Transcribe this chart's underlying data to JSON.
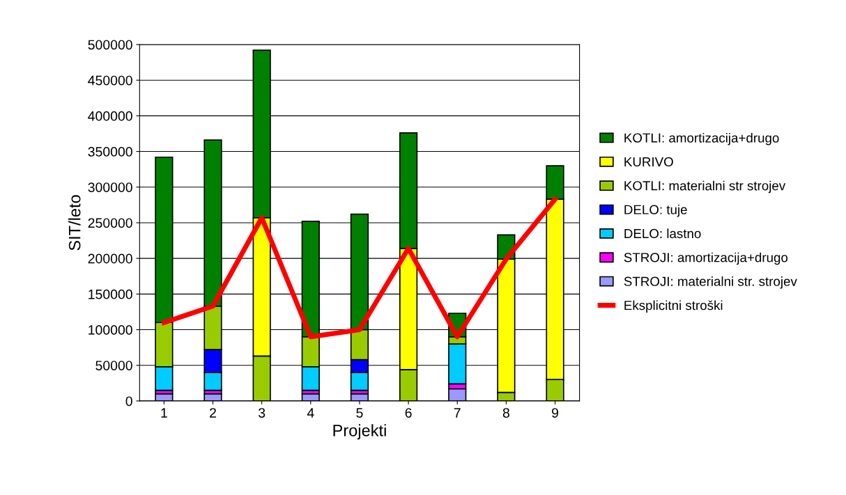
{
  "chart_data": {
    "type": "bar",
    "stacked": true,
    "xlabel": "Projekti",
    "ylabel": "SIT/leto",
    "categories": [
      "1",
      "2",
      "3",
      "4",
      "5",
      "6",
      "7",
      "8",
      "9"
    ],
    "ylim": [
      0,
      500000
    ],
    "yticks": [
      0,
      50000,
      100000,
      150000,
      200000,
      250000,
      300000,
      350000,
      400000,
      450000,
      500000
    ],
    "grid": "y",
    "legend": "right",
    "series": [
      {
        "name": "STROJI: materialni str. strojev",
        "color": "#9999ff",
        "values": [
          10000,
          10000,
          null,
          10000,
          10000,
          null,
          17000,
          null,
          null
        ]
      },
      {
        "name": "STROJI: amortizacija+drugo",
        "color": "#ff00ff",
        "values": [
          5000,
          5000,
          null,
          5000,
          5000,
          null,
          7000,
          null,
          null
        ]
      },
      {
        "name": "DELO: lastno",
        "color": "#00ccff",
        "values": [
          33000,
          25000,
          null,
          33000,
          25000,
          null,
          56000,
          null,
          null
        ]
      },
      {
        "name": "DELO: tuje",
        "color": "#0000ff",
        "values": [
          null,
          32000,
          null,
          null,
          18000,
          null,
          null,
          null,
          null
        ]
      },
      {
        "name": "KOTLI: materialni str strojev",
        "color": "#99cc00",
        "values": [
          62000,
          61000,
          63000,
          42000,
          42000,
          44000,
          10000,
          12000,
          30000
        ]
      },
      {
        "name": "KURIVO",
        "color": "#ffff00",
        "values": [
          null,
          null,
          194000,
          null,
          null,
          170000,
          null,
          187000,
          253000
        ]
      },
      {
        "name": "KOTLI: amortizacija+drugo",
        "color": "#008000",
        "values": [
          232000,
          233000,
          235000,
          162000,
          162000,
          162000,
          33000,
          34000,
          47000
        ]
      },
      {
        "name": "Eksplicitni stroški",
        "type": "line",
        "color": "#ff0000",
        "values": [
          110000,
          133000,
          257000,
          90000,
          100000,
          214000,
          90000,
          199000,
          283000
        ]
      }
    ]
  }
}
